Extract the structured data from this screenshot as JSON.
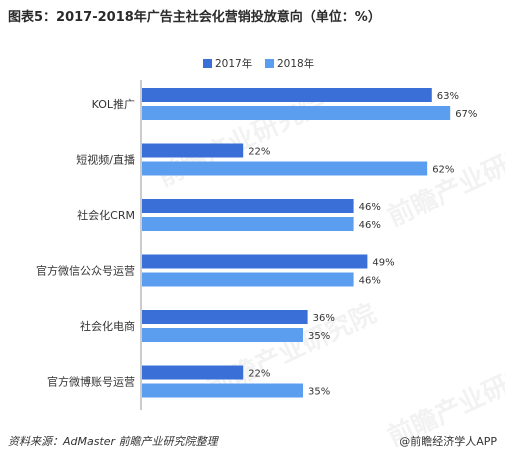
{
  "title": "图表5：2017-2018年广告主社会化营销投放意向（单位：%）",
  "legend": [
    {
      "label": "2017年",
      "color": "#3a6fd8"
    },
    {
      "label": "2018年",
      "color": "#5b9ef0"
    }
  ],
  "footer": {
    "source": "资料来源：AdMaster  前瞻产业研究院整理",
    "brand": "@前瞻经济学人APP"
  },
  "watermark": "前瞻产业研究院",
  "chart_data": {
    "type": "bar",
    "orientation": "horizontal",
    "title": "图表5：2017-2018年广告主社会化营销投放意向（单位：%）",
    "categories": [
      "KOL推广",
      "短视频/直播",
      "社会化CRM",
      "官方微信公众号运营",
      "社会化电商",
      "官方微博账号运营"
    ],
    "series": [
      {
        "name": "2017年",
        "values": [
          63,
          22,
          46,
          49,
          36,
          22
        ],
        "color": "#3a6fd8"
      },
      {
        "name": "2018年",
        "values": [
          67,
          62,
          46,
          46,
          35,
          35
        ],
        "color": "#5b9ef0"
      }
    ],
    "value_suffix": "%",
    "xlim": [
      0,
      100
    ],
    "grid": false,
    "legend_position": "top"
  }
}
